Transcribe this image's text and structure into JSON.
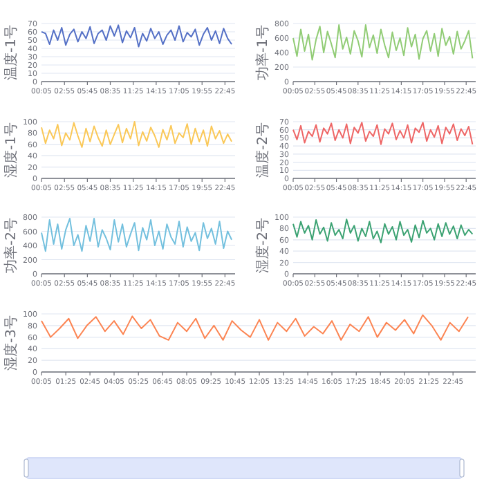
{
  "chart_data": [
    {
      "type": "line",
      "ylabel": "温度-1号",
      "grid": "y",
      "marker": "none",
      "xlim": [
        0.08,
        24
      ],
      "ylim": [
        0,
        70
      ],
      "yticks": [
        0,
        10,
        20,
        30,
        40,
        50,
        60,
        70
      ],
      "xticks": [
        {
          "value": 0.08,
          "label": "00:05"
        },
        {
          "value": 2.92,
          "label": "02:55"
        },
        {
          "value": 5.75,
          "label": "05:45"
        },
        {
          "value": 8.58,
          "label": "08:35"
        },
        {
          "value": 11.42,
          "label": "11:25"
        },
        {
          "value": 14.25,
          "label": "14:15"
        },
        {
          "value": 17.08,
          "label": "17:05"
        },
        {
          "value": 19.92,
          "label": "19:55"
        },
        {
          "value": 22.75,
          "label": "22:45"
        }
      ],
      "x": [
        0.08,
        0.58,
        1.08,
        1.58,
        2.08,
        2.58,
        3.08,
        3.58,
        4.08,
        4.58,
        5.08,
        5.58,
        6.08,
        6.58,
        7.08,
        7.58,
        8.08,
        8.58,
        9.08,
        9.58,
        10.08,
        10.58,
        11.08,
        11.58,
        12.08,
        12.58,
        13.08,
        13.58,
        14.08,
        14.58,
        15.08,
        15.58,
        16.08,
        16.58,
        17.08,
        17.58,
        18.08,
        18.58,
        19.08,
        19.58,
        20.08,
        20.58,
        21.08,
        21.58,
        22.08,
        22.58,
        23.08,
        23.58
      ],
      "series": [
        {
          "color": "#5470c6",
          "values": [
            60,
            58,
            45,
            62,
            50,
            65,
            44,
            57,
            63,
            48,
            60,
            52,
            66,
            46,
            58,
            62,
            50,
            67,
            55,
            68,
            47,
            61,
            53,
            65,
            42,
            58,
            49,
            64,
            52,
            60,
            45,
            56,
            62,
            50,
            67,
            48,
            59,
            54,
            63,
            44,
            57,
            65,
            50,
            61,
            46,
            64,
            52,
            45
          ]
        }
      ]
    },
    {
      "type": "line",
      "ylabel": "功率-1号",
      "grid": "y",
      "marker": "none",
      "xlim": [
        0.08,
        24
      ],
      "ylim": [
        0,
        800
      ],
      "yticks": [
        0,
        200,
        400,
        600,
        800
      ],
      "xticks": [
        {
          "value": 0.08,
          "label": "00:05"
        },
        {
          "value": 2.92,
          "label": "02:55"
        },
        {
          "value": 5.75,
          "label": "05:45"
        },
        {
          "value": 8.58,
          "label": "08:35"
        },
        {
          "value": 11.42,
          "label": "11:25"
        },
        {
          "value": 14.25,
          "label": "14:15"
        },
        {
          "value": 17.08,
          "label": "17:05"
        },
        {
          "value": 19.92,
          "label": "19:55"
        },
        {
          "value": 22.75,
          "label": "22:45"
        }
      ],
      "x": [
        0.08,
        0.58,
        1.08,
        1.58,
        2.08,
        2.58,
        3.08,
        3.58,
        4.08,
        4.58,
        5.08,
        5.58,
        6.08,
        6.58,
        7.08,
        7.58,
        8.08,
        8.58,
        9.08,
        9.58,
        10.08,
        10.58,
        11.08,
        11.58,
        12.08,
        12.58,
        13.08,
        13.58,
        14.08,
        14.58,
        15.08,
        15.58,
        16.08,
        16.58,
        17.08,
        17.58,
        18.08,
        18.58,
        19.08,
        19.58,
        20.08,
        20.58,
        21.08,
        21.58,
        22.08,
        22.58,
        23.08,
        23.58
      ],
      "series": [
        {
          "color": "#91cc75",
          "values": [
            600,
            350,
            720,
            420,
            650,
            300,
            580,
            760,
            400,
            690,
            520,
            330,
            780,
            450,
            610,
            380,
            700,
            560,
            340,
            780,
            470,
            640,
            390,
            720,
            500,
            330,
            680,
            430,
            600,
            360,
            740,
            480,
            650,
            310,
            590,
            700,
            420,
            660,
            350,
            730,
            500,
            620,
            380,
            690,
            450,
            560,
            700,
            320
          ]
        }
      ]
    },
    {
      "type": "line",
      "ylabel": "湿度-1号",
      "grid": "y",
      "marker": "none",
      "xlim": [
        0.08,
        24
      ],
      "ylim": [
        0,
        100
      ],
      "yticks": [
        0,
        20,
        40,
        60,
        80,
        100
      ],
      "xticks": [
        {
          "value": 0.08,
          "label": "00:05"
        },
        {
          "value": 2.92,
          "label": "02:55"
        },
        {
          "value": 5.75,
          "label": "05:45"
        },
        {
          "value": 8.58,
          "label": "08:35"
        },
        {
          "value": 11.42,
          "label": "11:25"
        },
        {
          "value": 14.25,
          "label": "14:15"
        },
        {
          "value": 17.08,
          "label": "17:05"
        },
        {
          "value": 19.92,
          "label": "19:55"
        },
        {
          "value": 22.75,
          "label": "22:45"
        }
      ],
      "x": [
        0.08,
        0.58,
        1.08,
        1.58,
        2.08,
        2.58,
        3.08,
        3.58,
        4.08,
        4.58,
        5.08,
        5.58,
        6.08,
        6.58,
        7.08,
        7.58,
        8.08,
        8.58,
        9.08,
        9.58,
        10.08,
        10.58,
        11.08,
        11.58,
        12.08,
        12.58,
        13.08,
        13.58,
        14.08,
        14.58,
        15.08,
        15.58,
        16.08,
        16.58,
        17.08,
        17.58,
        18.08,
        18.58,
        19.08,
        19.58,
        20.08,
        20.58,
        21.08,
        21.58,
        22.08,
        22.58,
        23.08,
        23.58
      ],
      "series": [
        {
          "color": "#fac858",
          "values": [
            90,
            62,
            85,
            70,
            95,
            58,
            80,
            68,
            98,
            75,
            55,
            88,
            65,
            92,
            72,
            57,
            85,
            60,
            78,
            95,
            63,
            88,
            70,
            100,
            58,
            82,
            66,
            90,
            75,
            55,
            86,
            68,
            93,
            62,
            80,
            72,
            96,
            60,
            88,
            65,
            85,
            57,
            92,
            70,
            84,
            62,
            78,
            65
          ]
        }
      ]
    },
    {
      "type": "line",
      "ylabel": "温度-2号",
      "grid": "y",
      "marker": "none",
      "xlim": [
        0.08,
        24
      ],
      "ylim": [
        0,
        70
      ],
      "yticks": [
        0,
        10,
        20,
        30,
        40,
        50,
        60,
        70
      ],
      "xticks": [
        {
          "value": 0.08,
          "label": "00:05"
        },
        {
          "value": 2.92,
          "label": "02:55"
        },
        {
          "value": 5.75,
          "label": "05:45"
        },
        {
          "value": 8.58,
          "label": "08:35"
        },
        {
          "value": 11.42,
          "label": "11:25"
        },
        {
          "value": 14.25,
          "label": "14:15"
        },
        {
          "value": 17.08,
          "label": "17:05"
        },
        {
          "value": 19.92,
          "label": "19:55"
        },
        {
          "value": 22.75,
          "label": "22:45"
        }
      ],
      "x": [
        0.08,
        0.58,
        1.08,
        1.58,
        2.08,
        2.58,
        3.08,
        3.58,
        4.08,
        4.58,
        5.08,
        5.58,
        6.08,
        6.58,
        7.08,
        7.58,
        8.08,
        8.58,
        9.08,
        9.58,
        10.08,
        10.58,
        11.08,
        11.58,
        12.08,
        12.58,
        13.08,
        13.58,
        14.08,
        14.58,
        15.08,
        15.58,
        16.08,
        16.58,
        17.08,
        17.58,
        18.08,
        18.58,
        19.08,
        19.58,
        20.08,
        20.58,
        21.08,
        21.58,
        22.08,
        22.58,
        23.08,
        23.58
      ],
      "series": [
        {
          "color": "#ee6666",
          "values": [
            60,
            48,
            65,
            44,
            58,
            52,
            66,
            45,
            62,
            55,
            68,
            47,
            60,
            50,
            67,
            43,
            63,
            56,
            69,
            46,
            58,
            52,
            66,
            42,
            61,
            55,
            68,
            48,
            59,
            50,
            66,
            44,
            62,
            57,
            69,
            46,
            60,
            51,
            65,
            43,
            63,
            55,
            67,
            47,
            61,
            53,
            64,
            42
          ]
        }
      ]
    },
    {
      "type": "line",
      "ylabel": "功率-2号",
      "grid": "y",
      "marker": "none",
      "xlim": [
        0.08,
        24
      ],
      "ylim": [
        0,
        800
      ],
      "yticks": [
        0,
        200,
        400,
        600,
        800
      ],
      "xticks": [
        {
          "value": 0.08,
          "label": "00:05"
        },
        {
          "value": 2.92,
          "label": "02:55"
        },
        {
          "value": 5.75,
          "label": "05:45"
        },
        {
          "value": 8.58,
          "label": "08:35"
        },
        {
          "value": 11.42,
          "label": "11:25"
        },
        {
          "value": 14.25,
          "label": "14:15"
        },
        {
          "value": 17.08,
          "label": "17:05"
        },
        {
          "value": 19.92,
          "label": "19:55"
        },
        {
          "value": 22.75,
          "label": "22:45"
        }
      ],
      "x": [
        0.08,
        0.58,
        1.08,
        1.58,
        2.08,
        2.58,
        3.08,
        3.58,
        4.08,
        4.58,
        5.08,
        5.58,
        6.08,
        6.58,
        7.08,
        7.58,
        8.08,
        8.58,
        9.08,
        9.58,
        10.08,
        10.58,
        11.08,
        11.58,
        12.08,
        12.58,
        13.08,
        13.58,
        14.08,
        14.58,
        15.08,
        15.58,
        16.08,
        16.58,
        17.08,
        17.58,
        18.08,
        18.58,
        19.08,
        19.58,
        20.08,
        20.58,
        21.08,
        21.58,
        22.08,
        22.58,
        23.08,
        23.58
      ],
      "series": [
        {
          "color": "#73c0de",
          "values": [
            580,
            320,
            760,
            420,
            700,
            350,
            620,
            780,
            400,
            550,
            320,
            680,
            460,
            780,
            380,
            620,
            500,
            340,
            760,
            450,
            700,
            380,
            560,
            720,
            330,
            650,
            480,
            760,
            400,
            600,
            350,
            700,
            520,
            420,
            740,
            380,
            660,
            460,
            580,
            330,
            720,
            500,
            640,
            420,
            740,
            360,
            600,
            480
          ]
        }
      ]
    },
    {
      "type": "line",
      "ylabel": "湿度-2号",
      "grid": "y",
      "marker": "none",
      "xlim": [
        0.08,
        24
      ],
      "ylim": [
        0,
        100
      ],
      "yticks": [
        0,
        20,
        40,
        60,
        80,
        100
      ],
      "xticks": [
        {
          "value": 0.08,
          "label": "00:05"
        },
        {
          "value": 2.92,
          "label": "02:55"
        },
        {
          "value": 5.75,
          "label": "05:45"
        },
        {
          "value": 8.58,
          "label": "08:35"
        },
        {
          "value": 11.42,
          "label": "11:25"
        },
        {
          "value": 14.25,
          "label": "14:15"
        },
        {
          "value": 17.08,
          "label": "17:05"
        },
        {
          "value": 19.92,
          "label": "19:55"
        },
        {
          "value": 22.75,
          "label": "22:45"
        }
      ],
      "x": [
        0.08,
        0.58,
        1.08,
        1.58,
        2.08,
        2.58,
        3.08,
        3.58,
        4.08,
        4.58,
        5.08,
        5.58,
        6.08,
        6.58,
        7.08,
        7.58,
        8.08,
        8.58,
        9.08,
        9.58,
        10.08,
        10.58,
        11.08,
        11.58,
        12.08,
        12.58,
        13.08,
        13.58,
        14.08,
        14.58,
        15.08,
        15.58,
        16.08,
        16.58,
        17.08,
        17.58,
        18.08,
        18.58,
        19.08,
        19.58,
        20.08,
        20.58,
        21.08,
        21.58,
        22.08,
        22.58,
        23.08,
        23.58
      ],
      "series": [
        {
          "color": "#3ba272",
          "values": [
            88,
            65,
            92,
            72,
            85,
            60,
            95,
            70,
            82,
            58,
            90,
            68,
            78,
            62,
            96,
            72,
            85,
            58,
            80,
            66,
            92,
            62,
            75,
            55,
            88,
            70,
            83,
            60,
            92,
            68,
            78,
            56,
            86,
            64,
            94,
            72,
            80,
            60,
            88,
            66,
            90,
            70,
            84,
            62,
            86,
            68,
            78,
            70
          ]
        }
      ]
    },
    {
      "type": "line",
      "ylabel": "湿度-3号",
      "grid": "y",
      "marker": "none",
      "xlim": [
        0.08,
        24
      ],
      "ylim": [
        0,
        100
      ],
      "yticks": [
        0,
        20,
        40,
        60,
        80,
        100
      ],
      "xticks": [
        {
          "value": 0.08,
          "label": "00:05"
        },
        {
          "value": 1.42,
          "label": "01:25"
        },
        {
          "value": 2.75,
          "label": "02:45"
        },
        {
          "value": 4.08,
          "label": "04:05"
        },
        {
          "value": 5.42,
          "label": "05:25"
        },
        {
          "value": 6.75,
          "label": "06:45"
        },
        {
          "value": 8.08,
          "label": "08:05"
        },
        {
          "value": 9.42,
          "label": "09:25"
        },
        {
          "value": 10.75,
          "label": "10:45"
        },
        {
          "value": 12.08,
          "label": "12:05"
        },
        {
          "value": 13.42,
          "label": "13:25"
        },
        {
          "value": 14.75,
          "label": "14:45"
        },
        {
          "value": 16.08,
          "label": "16:05"
        },
        {
          "value": 17.42,
          "label": "17:25"
        },
        {
          "value": 18.75,
          "label": "18:45"
        },
        {
          "value": 20.08,
          "label": "20:05"
        },
        {
          "value": 21.42,
          "label": "21:25"
        },
        {
          "value": 22.75,
          "label": "22:45"
        }
      ],
      "x": [
        0.08,
        0.58,
        1.08,
        1.58,
        2.08,
        2.58,
        3.08,
        3.58,
        4.08,
        4.58,
        5.08,
        5.58,
        6.08,
        6.58,
        7.08,
        7.58,
        8.08,
        8.58,
        9.08,
        9.58,
        10.08,
        10.58,
        11.08,
        11.58,
        12.08,
        12.58,
        13.08,
        13.58,
        14.08,
        14.58,
        15.08,
        15.58,
        16.08,
        16.58,
        17.08,
        17.58,
        18.08,
        18.58,
        19.08,
        19.58,
        20.08,
        20.58,
        21.08,
        21.58,
        22.08,
        22.58,
        23.08,
        23.58
      ],
      "series": [
        {
          "color": "#fc8452",
          "values": [
            88,
            60,
            75,
            92,
            58,
            80,
            95,
            70,
            88,
            65,
            96,
            75,
            90,
            62,
            55,
            85,
            70,
            92,
            58,
            80,
            55,
            88,
            72,
            60,
            90,
            55,
            85,
            70,
            92,
            62,
            78,
            66,
            88,
            55,
            82,
            70,
            95,
            60,
            85,
            72,
            90,
            66,
            98,
            80,
            55,
            85,
            70,
            95
          ]
        }
      ]
    }
  ]
}
